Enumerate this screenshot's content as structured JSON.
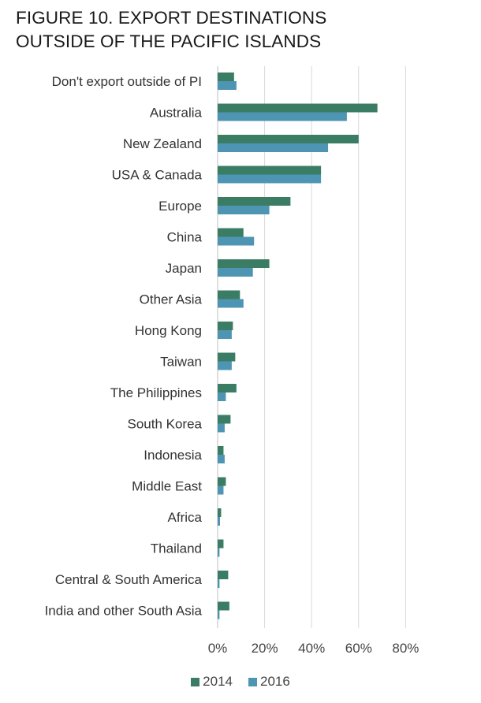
{
  "title_lines": [
    "FIGURE 10.  EXPORT DESTINATIONS",
    "OUTSIDE OF THE PACIFIC ISLANDS"
  ],
  "colors": {
    "series_2014": "#3b7d64",
    "series_2016": "#4e95b3",
    "grid": "#d9d9d9",
    "axis": "#bfbfbf"
  },
  "chart_data": {
    "type": "bar",
    "orientation": "horizontal",
    "categories": [
      "Don't export outside of PI",
      "Australia",
      "New Zealand",
      "USA & Canada",
      "Europe",
      "China",
      "Japan",
      "Other Asia",
      "Hong Kong",
      "Taiwan",
      "The Philippines",
      "South Korea",
      "Indonesia",
      "Middle East",
      "Africa",
      "Thailand",
      "Central & South America",
      "India and other South Asia"
    ],
    "series": [
      {
        "name": "2014",
        "values": [
          7,
          68,
          60,
          44,
          31,
          11,
          22,
          9.5,
          6.5,
          7.5,
          8,
          5.5,
          2.5,
          3.5,
          1.5,
          2.5,
          4.5,
          5
        ]
      },
      {
        "name": "2016",
        "values": [
          8,
          55,
          47,
          44,
          22,
          15.5,
          15,
          11,
          6,
          6,
          3.5,
          3,
          3,
          2.5,
          1,
          0.8,
          0.8,
          0.8
        ]
      }
    ],
    "x_ticks": [
      "0%",
      "20%",
      "40%",
      "60%",
      "80%"
    ],
    "xlim": [
      0,
      80
    ],
    "grid": true,
    "legend_position": "bottom"
  }
}
